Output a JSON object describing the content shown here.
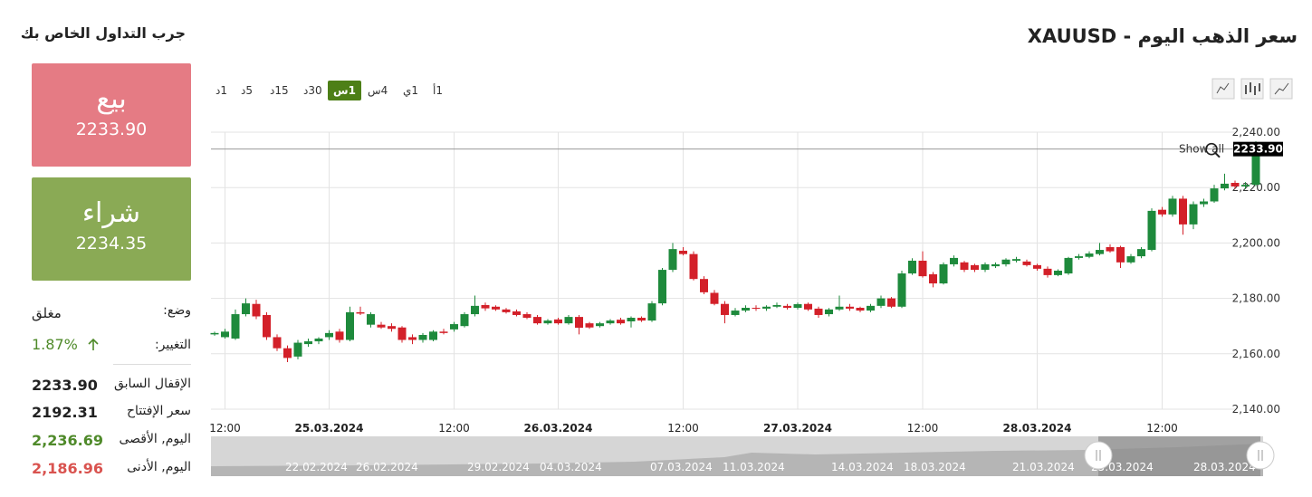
{
  "sidebar": {
    "title": "جرب التداول الخاص بك",
    "sell": {
      "label": "بيع",
      "price": "2233.90"
    },
    "buy": {
      "label": "شراء",
      "price": "2234.35"
    },
    "status": {
      "label": "وضع:",
      "value": "مغلق"
    },
    "change": {
      "label": "التغيير:",
      "value": "1.87%"
    },
    "rows": [
      {
        "label": "الإقفال السابق",
        "value": "2233.90",
        "color": "#222222"
      },
      {
        "label": "سعر الإفتتاح",
        "value": "2192.31",
        "color": "#222222"
      },
      {
        "label": "اليوم, الأقصى",
        "value": "2,236.69",
        "color": "#4f8a2a"
      },
      {
        "label": "اليوم, الأدنى",
        "value": "2,186.96",
        "color": "#d9534f"
      }
    ]
  },
  "header": {
    "title": "سعر الذهب اليوم - XAUUSD",
    "timeframes": [
      "1د",
      "5د",
      "15د",
      "30د",
      "1س",
      "4س",
      "1ي",
      "1أ"
    ],
    "active_timeframe_index": 4
  },
  "chart_data": {
    "type": "candlestick",
    "up_color": "#1e8a3c",
    "down_color": "#d32029",
    "ylim": [
      2140,
      2240
    ],
    "yticks": [
      {
        "value": 2140,
        "label": "2,140.00"
      },
      {
        "value": 2160,
        "label": "2,160.00"
      },
      {
        "value": 2180,
        "label": "2,180.00"
      },
      {
        "value": 2200,
        "label": "2,200.00"
      },
      {
        "value": 2220,
        "label": "2,220.00"
      },
      {
        "value": 2240,
        "label": "2,240.00"
      }
    ],
    "grid": true,
    "price_line": {
      "value": 2233.9,
      "label": "2233.90"
    },
    "reset_label": "Show all",
    "categories": [
      null,
      "12:00",
      null,
      null,
      null,
      null,
      null,
      null,
      null,
      null,
      null,
      "25.03.2024",
      null,
      null,
      null,
      null,
      null,
      null,
      null,
      null,
      null,
      null,
      null,
      "12:00",
      null,
      null,
      null,
      null,
      null,
      null,
      null,
      null,
      null,
      "26.03.2024",
      null,
      null,
      null,
      null,
      null,
      null,
      null,
      null,
      null,
      null,
      null,
      "12:00",
      null,
      null,
      null,
      null,
      null,
      null,
      null,
      null,
      null,
      null,
      "27.03.2024",
      null,
      null,
      null,
      null,
      null,
      null,
      null,
      null,
      null,
      null,
      null,
      "12:00",
      null,
      null,
      null,
      null,
      null,
      null,
      null,
      null,
      null,
      null,
      "28.03.2024",
      null,
      null,
      null,
      null,
      null,
      null,
      null,
      null,
      null,
      null,
      null,
      "12:00",
      null,
      null,
      null,
      null,
      null,
      null,
      null,
      null,
      null
    ],
    "ohlc": [
      [
        2167,
        2168,
        2166.5,
        2167.5
      ],
      [
        2166,
        2169,
        2165.5,
        2168
      ],
      [
        2165.5,
        2176,
        2165,
        2174.3
      ],
      [
        2174.3,
        2180,
        2173.5,
        2178.2
      ],
      [
        2178,
        2179.5,
        2172.5,
        2173.5
      ],
      [
        2174,
        2175,
        2165,
        2166
      ],
      [
        2166,
        2167,
        2161,
        2162
      ],
      [
        2162,
        2163,
        2157,
        2158.5
      ],
      [
        2159,
        2165,
        2158,
        2164
      ],
      [
        2163.5,
        2165.5,
        2162.5,
        2164.5
      ],
      [
        2164.5,
        2166,
        2163.5,
        2165.5
      ],
      [
        2166,
        2168.5,
        2165,
        2167.5
      ],
      [
        2168,
        2169,
        2164,
        2165
      ],
      [
        2165,
        2177,
        2164.5,
        2175
      ],
      [
        2175,
        2177,
        2174,
        2174.5
      ],
      [
        2170.5,
        2175,
        2169.5,
        2174.3
      ],
      [
        2170.5,
        2171.5,
        2169,
        2169.5
      ],
      [
        2170,
        2171,
        2168,
        2169
      ],
      [
        2169.5,
        2170,
        2164,
        2165
      ],
      [
        2166,
        2167,
        2163.5,
        2165
      ],
      [
        2165,
        2167.5,
        2164,
        2166.8
      ],
      [
        2165,
        2168.5,
        2164.5,
        2168
      ],
      [
        2168,
        2169,
        2167,
        2167.5
      ],
      [
        2168.8,
        2171.5,
        2168,
        2170.7
      ],
      [
        2170,
        2175,
        2169.5,
        2174.3
      ],
      [
        2174.3,
        2181,
        2173.5,
        2177.3
      ],
      [
        2177.6,
        2178.5,
        2175.5,
        2176.4
      ],
      [
        2177,
        2177.5,
        2175.5,
        2176
      ],
      [
        2176,
        2176.5,
        2174.5,
        2175
      ],
      [
        2175.3,
        2176,
        2173.5,
        2174
      ],
      [
        2174.3,
        2175,
        2172.5,
        2173
      ],
      [
        2173.3,
        2174,
        2170.5,
        2171
      ],
      [
        2171,
        2172.5,
        2170.5,
        2172
      ],
      [
        2172.4,
        2173,
        2170.5,
        2171
      ],
      [
        2171,
        2174,
        2170.5,
        2173.3
      ],
      [
        2173.3,
        2174,
        2167,
        2169.4
      ],
      [
        2171,
        2171.5,
        2169,
        2169.5
      ],
      [
        2170,
        2171.5,
        2169.5,
        2171
      ],
      [
        2171,
        2172.5,
        2170.5,
        2172
      ],
      [
        2172.3,
        2173,
        2170.5,
        2171
      ],
      [
        2171.7,
        2173.5,
        2169.5,
        2173
      ],
      [
        2173,
        2173.5,
        2171.5,
        2172
      ],
      [
        2172,
        2179,
        2171.5,
        2178.2
      ],
      [
        2178.2,
        2191,
        2177.5,
        2190.3
      ],
      [
        2190.3,
        2200,
        2189.5,
        2197.8
      ],
      [
        2197.2,
        2198.5,
        2195.5,
        2196
      ],
      [
        2196,
        2197,
        2186.5,
        2187
      ],
      [
        2187,
        2188,
        2181.5,
        2182.2
      ],
      [
        2182,
        2183,
        2177.5,
        2178
      ],
      [
        2178,
        2179,
        2171,
        2174
      ],
      [
        2174,
        2176.5,
        2173.5,
        2175.6
      ],
      [
        2175.6,
        2177.5,
        2175,
        2176.6
      ],
      [
        2176.6,
        2177.5,
        2175.5,
        2176.3
      ],
      [
        2176.3,
        2177.5,
        2175.5,
        2177
      ],
      [
        2177,
        2178.5,
        2176.5,
        2177.6
      ],
      [
        2177.3,
        2178,
        2176,
        2176.6
      ],
      [
        2176.6,
        2178.5,
        2176,
        2177.9
      ],
      [
        2178,
        2178.5,
        2175.5,
        2176
      ],
      [
        2176.3,
        2177,
        2173,
        2174
      ],
      [
        2174.3,
        2176.5,
        2173.5,
        2176
      ],
      [
        2176,
        2181,
        2175.5,
        2177
      ],
      [
        2177,
        2178,
        2175.5,
        2176.3
      ],
      [
        2176.6,
        2177,
        2175,
        2175.6
      ],
      [
        2175.6,
        2178,
        2175,
        2177.3
      ],
      [
        2177.3,
        2181,
        2176.5,
        2180
      ],
      [
        2180,
        2180.5,
        2176.5,
        2177
      ],
      [
        2177,
        2190,
        2176.5,
        2189
      ],
      [
        2189,
        2194.5,
        2188.5,
        2193.6
      ],
      [
        2193.6,
        2197,
        2187.5,
        2188
      ],
      [
        2188.7,
        2189.5,
        2184,
        2185.4
      ],
      [
        2185.4,
        2193,
        2185,
        2192.3
      ],
      [
        2192.3,
        2195.5,
        2191.5,
        2194.6
      ],
      [
        2193,
        2193.5,
        2189.5,
        2190.3
      ],
      [
        2192,
        2192.5,
        2189.5,
        2190.3
      ],
      [
        2190.3,
        2193,
        2189.5,
        2192.3
      ],
      [
        2191.6,
        2193,
        2191,
        2192.3
      ],
      [
        2192.3,
        2194.5,
        2191.5,
        2194
      ],
      [
        2193.6,
        2195,
        2193,
        2194.2
      ],
      [
        2193.3,
        2194,
        2191.5,
        2192
      ],
      [
        2192,
        2192.5,
        2190,
        2190.7
      ],
      [
        2190.7,
        2191.5,
        2187.5,
        2188.4
      ],
      [
        2188.4,
        2190.5,
        2188,
        2190
      ],
      [
        2189,
        2195,
        2188.5,
        2194.6
      ],
      [
        2194.6,
        2196,
        2194,
        2195.2
      ],
      [
        2195,
        2197,
        2194.5,
        2196.2
      ],
      [
        2196,
        2200,
        2195.5,
        2197.5
      ],
      [
        2198.5,
        2199.5,
        2196.5,
        2197
      ],
      [
        2198.5,
        2199,
        2191,
        2193
      ],
      [
        2193,
        2196,
        2192.5,
        2195.2
      ],
      [
        2195.2,
        2198.5,
        2194.5,
        2197.8
      ],
      [
        2197.5,
        2212.5,
        2197,
        2211.6
      ],
      [
        2212,
        2213,
        2209.5,
        2210.3
      ],
      [
        2210.3,
        2217,
        2209.5,
        2216
      ],
      [
        2216,
        2217,
        2203,
        2206.7
      ],
      [
        2206.7,
        2215,
        2205,
        2214
      ],
      [
        2214,
        2216,
        2213,
        2215
      ],
      [
        2215,
        2221,
        2214.5,
        2219.7
      ],
      [
        2219.7,
        2225,
        2219,
        2221.4
      ],
      [
        2221.7,
        2222.5,
        2219.5,
        2220.4
      ],
      [
        2220.4,
        2222,
        2219.5,
        2221
      ],
      [
        2221,
        2236.69,
        2220.5,
        2233.9
      ]
    ],
    "navigator_labels": [
      "22.02.2024",
      "26.02.2024",
      "29.02.2024",
      "04.03.2024",
      "07.03.2024",
      "11.03.2024",
      "14.03.2024",
      "18.03.2024",
      "21.03.2024",
      "25.03.2024",
      "28.03.2024"
    ]
  }
}
